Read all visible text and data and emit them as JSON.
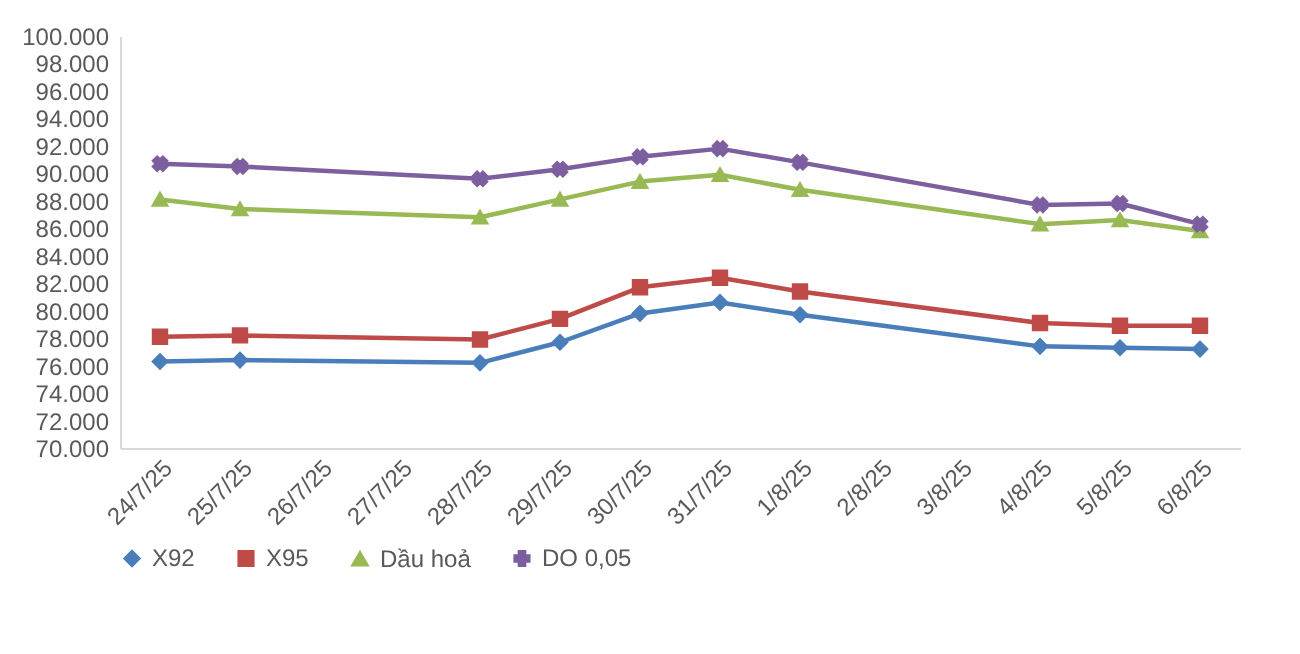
{
  "chart_data": {
    "type": "line",
    "categories": [
      "24/7/25",
      "25/7/25",
      "26/7/25",
      "27/7/25",
      "28/7/25",
      "29/7/25",
      "30/7/25",
      "31/7/25",
      "1/8/25",
      "2/8/25",
      "3/8/25",
      "4/8/25",
      "5/8/25",
      "6/8/25"
    ],
    "series": [
      {
        "name": "X92",
        "color": "#4a7ebb",
        "marker": "diamond",
        "values": [
          76300,
          76400,
          null,
          null,
          76200,
          77700,
          79800,
          80600,
          79700,
          null,
          null,
          77400,
          77300,
          77200
        ]
      },
      {
        "name": "X95",
        "color": "#be4b48",
        "marker": "square",
        "values": [
          78100,
          78200,
          null,
          null,
          77900,
          79400,
          81700,
          82400,
          81400,
          null,
          null,
          79100,
          78900,
          78900
        ]
      },
      {
        "name": "Dầu hoả",
        "color": "#98b954",
        "marker": "triangle",
        "values": [
          88100,
          87400,
          null,
          null,
          86800,
          88100,
          89400,
          89900,
          88800,
          null,
          null,
          86300,
          86600,
          85800
        ]
      },
      {
        "name": "DO 0,05",
        "color": "#7d5fa0",
        "marker": "cross",
        "values": [
          90700,
          90500,
          null,
          null,
          89600,
          90300,
          91200,
          91800,
          90800,
          null,
          null,
          87700,
          87800,
          86300
        ]
      }
    ],
    "ylim": [
      70000,
      100000
    ],
    "yticks": [
      {
        "value": 70000,
        "label": "70.000"
      },
      {
        "value": 72000,
        "label": "72.000"
      },
      {
        "value": 74000,
        "label": "74.000"
      },
      {
        "value": 76000,
        "label": "76.000"
      },
      {
        "value": 78000,
        "label": "78.000"
      },
      {
        "value": 80000,
        "label": "80.000"
      },
      {
        "value": 82000,
        "label": "82.000"
      },
      {
        "value": 84000,
        "label": "84.000"
      },
      {
        "value": 86000,
        "label": "86.000"
      },
      {
        "value": 88000,
        "label": "88.000"
      },
      {
        "value": 90000,
        "label": "90.000"
      },
      {
        "value": 92000,
        "label": "92.000"
      },
      {
        "value": 94000,
        "label": "94.000"
      },
      {
        "value": 96000,
        "label": "96.000"
      },
      {
        "value": 98000,
        "label": "98.000"
      },
      {
        "value": 100000,
        "label": "100.000"
      }
    ],
    "grid": false,
    "legend": "bottom",
    "line_style": "solid"
  }
}
